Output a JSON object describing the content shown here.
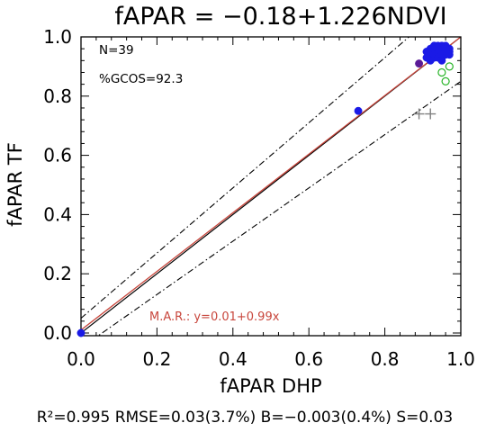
{
  "chart_data": {
    "type": "scatter",
    "title": "fAPAR = −0.18+1.226NDVI",
    "xlabel": "fAPAR DHP",
    "ylabel": "fAPAR TF",
    "xlim": [
      0.0,
      1.0
    ],
    "ylim": [
      0.0,
      1.0
    ],
    "x_ticks": [
      "0.0",
      "0.2",
      "0.4",
      "0.6",
      "0.8",
      "1.0"
    ],
    "y_ticks": [
      "0.0",
      "0.2",
      "0.4",
      "0.6",
      "0.8",
      "1.0"
    ],
    "grid": false,
    "annotations": {
      "n": "N=39",
      "gcos": "%GCOS=92.3",
      "mar": "M.A.R.: y=0.01+0.99x"
    },
    "stats_line": "R²=0.995 RMSE=0.03(3.7%) B=−0.003(0.4%) S=0.03",
    "lines": {
      "one_to_one": {
        "intercept": 0.0,
        "slope": 1.0,
        "color": "#000000",
        "style": "solid"
      },
      "regression": {
        "intercept": 0.01,
        "slope": 0.99,
        "color": "#c8463c",
        "style": "solid"
      },
      "bounds": {
        "offset": 0.05,
        "slope_factor": 0.1,
        "color": "#000000",
        "style": "dash-dot"
      }
    },
    "series": [
      {
        "marker": "filled-circle",
        "color": "#1a1ae6",
        "points": [
          [
            0.0,
            0.0
          ],
          [
            0.73,
            0.75
          ],
          [
            0.91,
            0.95
          ],
          [
            0.92,
            0.96
          ],
          [
            0.92,
            0.94
          ],
          [
            0.93,
            0.97
          ],
          [
            0.93,
            0.95
          ],
          [
            0.93,
            0.93
          ],
          [
            0.94,
            0.96
          ],
          [
            0.94,
            0.94
          ],
          [
            0.94,
            0.97
          ],
          [
            0.95,
            0.95
          ],
          [
            0.95,
            0.93
          ],
          [
            0.95,
            0.96
          ],
          [
            0.96,
            0.97
          ],
          [
            0.96,
            0.94
          ],
          [
            0.97,
            0.96
          ],
          [
            0.97,
            0.95
          ],
          [
            0.92,
            0.92
          ],
          [
            0.93,
            0.96
          ],
          [
            0.94,
            0.95
          ],
          [
            0.95,
            0.97
          ],
          [
            0.96,
            0.96
          ],
          [
            0.91,
            0.93
          ],
          [
            0.92,
            0.95
          ],
          [
            0.93,
            0.94
          ],
          [
            0.94,
            0.93
          ],
          [
            0.95,
            0.94
          ],
          [
            0.96,
            0.95
          ],
          [
            0.97,
            0.94
          ],
          [
            0.95,
            0.92
          ],
          [
            0.93,
            0.97
          ],
          [
            0.94,
            0.96
          ]
        ]
      },
      {
        "marker": "filled-circle",
        "color": "#5a1a96",
        "points": [
          [
            0.89,
            0.91
          ]
        ]
      },
      {
        "marker": "open-circle",
        "color": "#28b428",
        "points": [
          [
            0.95,
            0.88
          ],
          [
            0.97,
            0.9
          ],
          [
            0.96,
            0.85
          ]
        ]
      },
      {
        "marker": "plus",
        "color": "#808080",
        "points": [
          [
            0.89,
            0.74
          ],
          [
            0.92,
            0.74
          ]
        ]
      }
    ]
  }
}
